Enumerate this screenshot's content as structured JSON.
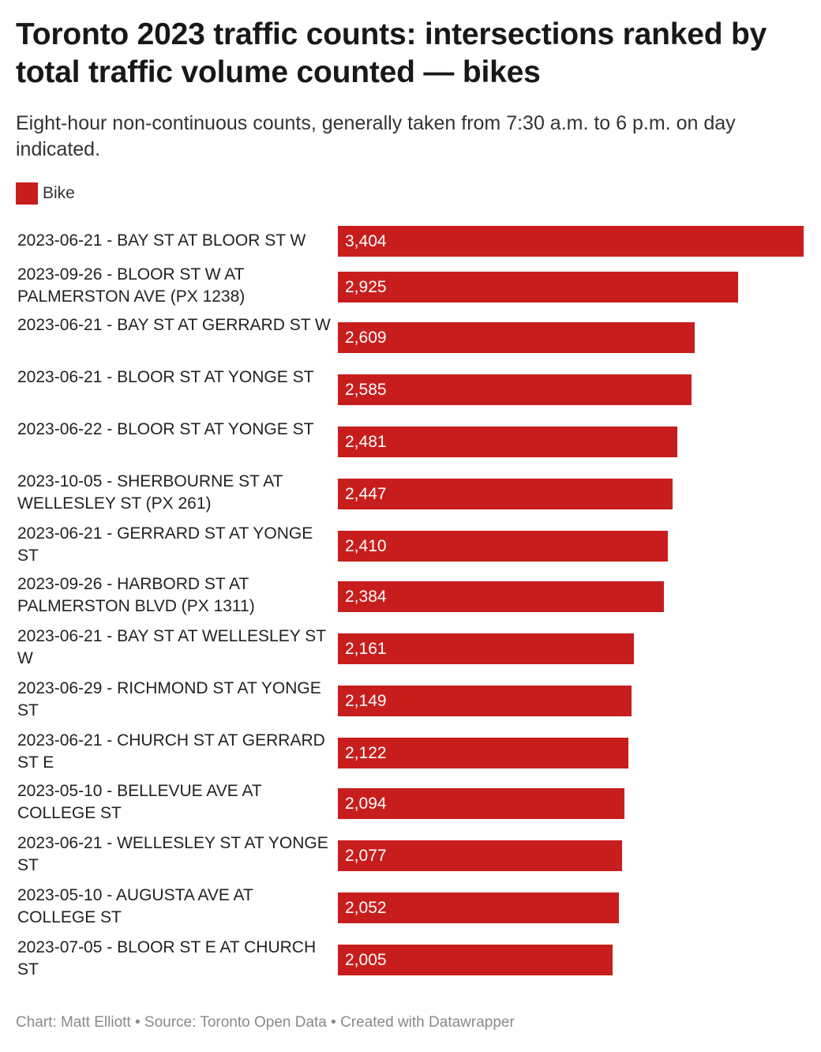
{
  "header": {
    "title": "Toronto 2023 traffic counts: intersections ranked by total traffic volume counted — bikes",
    "subtitle": "Eight-hour non-continuous counts, generally taken from 7:30 a.m. to 6 p.m. on day indicated."
  },
  "legend": {
    "label": "Bike",
    "color": "#c71e1d"
  },
  "footer": {
    "text": "Chart: Matt Elliott • Source: Toronto Open Data • Created with Datawrapper"
  },
  "chart_data": {
    "type": "bar",
    "orientation": "horizontal",
    "title": "Toronto 2023 traffic counts: intersections ranked by total traffic volume counted — bikes",
    "subtitle": "Eight-hour non-continuous counts, generally taken from 7:30 a.m. to 6 p.m. on day indicated.",
    "categories": [
      "2023-06-21 - BAY ST AT BLOOR ST W",
      "2023-09-26 - BLOOR ST W AT PALMERSTON AVE (PX 1238)",
      "2023-06-21 - BAY ST AT GERRARD ST W",
      "2023-06-21 - BLOOR ST AT YONGE ST",
      "2023-06-22 - BLOOR ST AT YONGE ST",
      "2023-10-05 - SHERBOURNE ST AT WELLESLEY ST (PX 261)",
      "2023-06-21 - GERRARD ST AT YONGE ST",
      "2023-09-26 - HARBORD ST AT PALMERSTON BLVD (PX 1311)",
      "2023-06-21 - BAY ST AT WELLESLEY ST W",
      "2023-06-29 - RICHMOND ST AT YONGE ST",
      "2023-06-21 - CHURCH ST AT GERRARD ST E",
      "2023-05-10 - BELLEVUE AVE AT COLLEGE ST",
      "2023-06-21 - WELLESLEY ST AT YONGE ST",
      "2023-05-10 - AUGUSTA AVE AT COLLEGE ST",
      "2023-07-05 - BLOOR ST E AT CHURCH ST"
    ],
    "series": [
      {
        "name": "Bike",
        "color": "#c71e1d",
        "values": [
          3404,
          2925,
          2609,
          2585,
          2481,
          2447,
          2410,
          2384,
          2161,
          2149,
          2122,
          2094,
          2077,
          2052,
          2005
        ]
      }
    ],
    "value_labels": [
      "3,404",
      "2,925",
      "2,609",
      "2,585",
      "2,481",
      "2,447",
      "2,410",
      "2,384",
      "2,161",
      "2,149",
      "2,122",
      "2,094",
      "2,077",
      "2,052",
      "2,005"
    ],
    "xlim": [
      0,
      3404
    ],
    "grid": false,
    "legend_position": "top-left"
  }
}
